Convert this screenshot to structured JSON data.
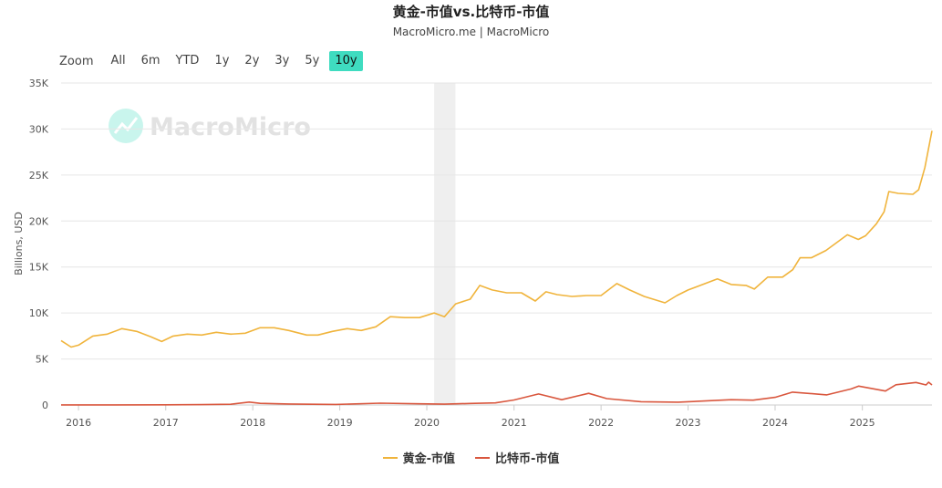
{
  "header": {
    "title": "黄金-市值vs.比特币-市值",
    "subtitle": "MacroMicro.me | MacroMicro"
  },
  "range_selector": {
    "label": "Zoom",
    "buttons": [
      "All",
      "6m",
      "YTD",
      "1y",
      "2y",
      "3y",
      "5y",
      "10y"
    ],
    "active": "10y"
  },
  "watermark": {
    "text": "MacroMicro"
  },
  "chart_data": {
    "type": "line",
    "ylabel": "Billions, USD",
    "ylim": [
      0,
      35000
    ],
    "xlim": [
      "2015-10-20",
      "2025-10-20"
    ],
    "y_ticks": [
      "0",
      "5K",
      "10K",
      "15K",
      "20K",
      "25K",
      "30K",
      "35K"
    ],
    "x_ticks": [
      "2016",
      "2017",
      "2018",
      "2019",
      "2020",
      "2021",
      "2022",
      "2023",
      "2024",
      "2025"
    ],
    "recession_band": {
      "from": "2020-02-01",
      "to": "2020-04-30"
    },
    "grid": true,
    "legend_position": "bottom",
    "series": [
      {
        "name": "黄金-市值",
        "color": "#f0b43c",
        "points": [
          [
            "2015-10-20",
            7000
          ],
          [
            "2015-12-01",
            6300
          ],
          [
            "2016-01-01",
            6500
          ],
          [
            "2016-03-01",
            7500
          ],
          [
            "2016-05-01",
            7700
          ],
          [
            "2016-07-01",
            8300
          ],
          [
            "2016-09-01",
            8000
          ],
          [
            "2016-11-01",
            7400
          ],
          [
            "2016-12-15",
            6900
          ],
          [
            "2017-02-01",
            7500
          ],
          [
            "2017-04-01",
            7700
          ],
          [
            "2017-06-01",
            7600
          ],
          [
            "2017-08-01",
            7900
          ],
          [
            "2017-10-01",
            7700
          ],
          [
            "2017-12-01",
            7800
          ],
          [
            "2018-02-01",
            8400
          ],
          [
            "2018-04-01",
            8400
          ],
          [
            "2018-06-01",
            8100
          ],
          [
            "2018-08-15",
            7600
          ],
          [
            "2018-10-01",
            7600
          ],
          [
            "2018-12-01",
            8000
          ],
          [
            "2019-02-01",
            8300
          ],
          [
            "2019-04-01",
            8100
          ],
          [
            "2019-06-01",
            8500
          ],
          [
            "2019-08-01",
            9600
          ],
          [
            "2019-10-01",
            9500
          ],
          [
            "2019-12-01",
            9500
          ],
          [
            "2020-02-01",
            10000
          ],
          [
            "2020-03-15",
            9600
          ],
          [
            "2020-05-01",
            11000
          ],
          [
            "2020-07-01",
            11500
          ],
          [
            "2020-08-10",
            13000
          ],
          [
            "2020-10-01",
            12500
          ],
          [
            "2020-12-01",
            12200
          ],
          [
            "2021-02-01",
            12200
          ],
          [
            "2021-03-31",
            11300
          ],
          [
            "2021-05-15",
            12300
          ],
          [
            "2021-07-01",
            12000
          ],
          [
            "2021-09-01",
            11800
          ],
          [
            "2021-11-01",
            11900
          ],
          [
            "2022-01-01",
            11900
          ],
          [
            "2022-03-08",
            13200
          ],
          [
            "2022-05-01",
            12500
          ],
          [
            "2022-07-01",
            11800
          ],
          [
            "2022-09-26",
            11100
          ],
          [
            "2022-11-15",
            11900
          ],
          [
            "2023-01-01",
            12500
          ],
          [
            "2023-05-04",
            13700
          ],
          [
            "2023-07-01",
            13100
          ],
          [
            "2023-09-01",
            13000
          ],
          [
            "2023-10-06",
            12600
          ],
          [
            "2023-12-01",
            13900
          ],
          [
            "2024-02-01",
            13900
          ],
          [
            "2024-03-15",
            14700
          ],
          [
            "2024-04-15",
            16000
          ],
          [
            "2024-06-01",
            16000
          ],
          [
            "2024-08-01",
            16800
          ],
          [
            "2024-10-30",
            18500
          ],
          [
            "2024-12-15",
            18000
          ],
          [
            "2025-01-15",
            18400
          ],
          [
            "2025-03-01",
            19700
          ],
          [
            "2025-04-02",
            21000
          ],
          [
            "2025-04-22",
            23200
          ],
          [
            "2025-06-01",
            23000
          ],
          [
            "2025-08-01",
            22900
          ],
          [
            "2025-08-25",
            23400
          ],
          [
            "2025-09-20",
            25800
          ],
          [
            "2025-10-20",
            29800
          ]
        ]
      },
      {
        "name": "比特币-市值",
        "color": "#d9573e",
        "points": [
          [
            "2015-10-20",
            5
          ],
          [
            "2016-06-01",
            10
          ],
          [
            "2017-01-01",
            15
          ],
          [
            "2017-06-01",
            40
          ],
          [
            "2017-10-01",
            80
          ],
          [
            "2017-12-17",
            320
          ],
          [
            "2018-02-01",
            180
          ],
          [
            "2018-06-01",
            110
          ],
          [
            "2018-12-15",
            60
          ],
          [
            "2019-06-20",
            200
          ],
          [
            "2019-12-01",
            130
          ],
          [
            "2020-03-15",
            90
          ],
          [
            "2020-07-01",
            170
          ],
          [
            "2020-10-15",
            230
          ],
          [
            "2021-01-01",
            550
          ],
          [
            "2021-04-14",
            1200
          ],
          [
            "2021-07-20",
            580
          ],
          [
            "2021-11-10",
            1270
          ],
          [
            "2022-01-25",
            690
          ],
          [
            "2022-06-18",
            360
          ],
          [
            "2022-11-20",
            310
          ],
          [
            "2023-03-01",
            430
          ],
          [
            "2023-07-01",
            580
          ],
          [
            "2023-10-01",
            530
          ],
          [
            "2024-01-01",
            830
          ],
          [
            "2024-03-14",
            1400
          ],
          [
            "2024-08-05",
            1100
          ],
          [
            "2024-11-15",
            1750
          ],
          [
            "2024-12-17",
            2050
          ],
          [
            "2025-04-08",
            1520
          ],
          [
            "2025-05-22",
            2200
          ],
          [
            "2025-08-14",
            2450
          ],
          [
            "2025-09-25",
            2180
          ],
          [
            "2025-10-06",
            2480
          ],
          [
            "2025-10-20",
            2180
          ]
        ]
      }
    ]
  }
}
